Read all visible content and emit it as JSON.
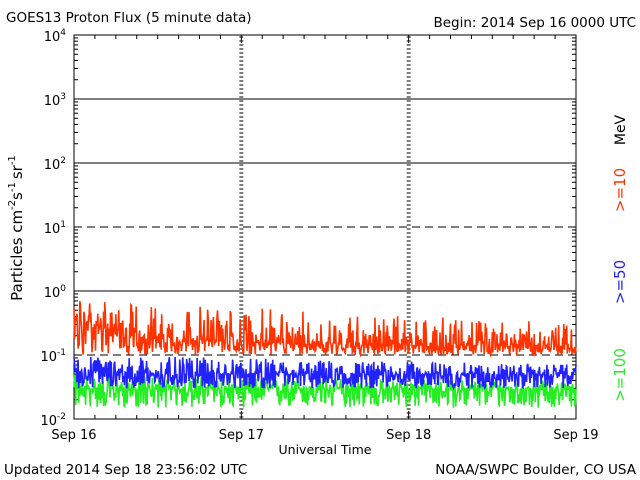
{
  "header": {
    "title": "GOES13 Proton Flux (5 minute data)",
    "begin": "Begin: 2014 Sep 16 0000 UTC"
  },
  "footer": {
    "updated": "Updated 2014 Sep 18 23:56:02 UTC",
    "source": "NOAA/SWPC Boulder, CO USA"
  },
  "legend": {
    "unit": "MeV",
    "items": [
      {
        "label": ">=10",
        "color": "#ff3300"
      },
      {
        "label": ">=50",
        "color": "#2222ff"
      },
      {
        "label": ">=100",
        "color": "#22ee22"
      }
    ]
  },
  "chart_data": {
    "type": "line",
    "ylabel_main": "Particles cm",
    "ylabel_exps": [
      "-2",
      "-1",
      "-1"
    ],
    "ylabel_units": [
      "s",
      "sr"
    ],
    "xlabel": "Universal Time",
    "x_ticks": [
      "Sep 16",
      "Sep 17",
      "Sep 18",
      "Sep 19"
    ],
    "y_ticks": [
      {
        "base": "10",
        "exp": "-2"
      },
      {
        "base": "10",
        "exp": "-1"
      },
      {
        "base": "10",
        "exp": "0"
      },
      {
        "base": "10",
        "exp": "1"
      },
      {
        "base": "10",
        "exp": "2"
      },
      {
        "base": "10",
        "exp": "3"
      },
      {
        "base": "10",
        "exp": "4"
      }
    ],
    "ylim_log10": [
      -2,
      4
    ],
    "xlim_days": [
      0,
      3
    ],
    "y_scale": "log",
    "threshold_lines": [
      {
        "value": 10,
        "style": "dashed"
      },
      {
        "value": 0.1,
        "style": "dashed"
      }
    ],
    "series": [
      {
        "name": ">=10",
        "color": "#ff3300",
        "x_days": [
          0,
          0.1,
          0.2,
          0.3,
          0.4,
          0.5,
          0.6,
          0.7,
          0.8,
          0.9,
          1.0,
          1.1,
          1.2,
          1.3,
          1.4,
          1.5,
          1.6,
          1.7,
          1.8,
          1.9,
          2.0,
          2.1,
          2.2,
          2.3,
          2.4,
          2.5,
          2.6,
          2.7,
          2.8,
          2.9,
          3.0
        ],
        "typical": [
          0.35,
          0.3,
          0.25,
          0.22,
          0.2,
          0.19,
          0.18,
          0.17,
          0.17,
          0.16,
          0.16,
          0.16,
          0.15,
          0.15,
          0.15,
          0.15,
          0.15,
          0.15,
          0.14,
          0.14,
          0.14,
          0.14,
          0.14,
          0.14,
          0.14,
          0.14,
          0.14,
          0.14,
          0.14,
          0.13,
          0.13
        ],
        "min": 0.1,
        "max": 0.7
      },
      {
        "name": ">=50",
        "color": "#2222ff",
        "x_days": [
          0,
          0.5,
          1.0,
          1.5,
          2.0,
          2.5,
          3.0
        ],
        "typical": [
          0.055,
          0.05,
          0.05,
          0.05,
          0.05,
          0.05,
          0.05
        ],
        "min": 0.03,
        "max": 0.1
      },
      {
        "name": ">=100",
        "color": "#22ee22",
        "x_days": [
          0,
          0.5,
          1.0,
          1.5,
          2.0,
          2.5,
          3.0
        ],
        "typical": [
          0.03,
          0.03,
          0.03,
          0.03,
          0.03,
          0.03,
          0.03
        ],
        "min": 0.015,
        "max": 0.05
      }
    ]
  }
}
